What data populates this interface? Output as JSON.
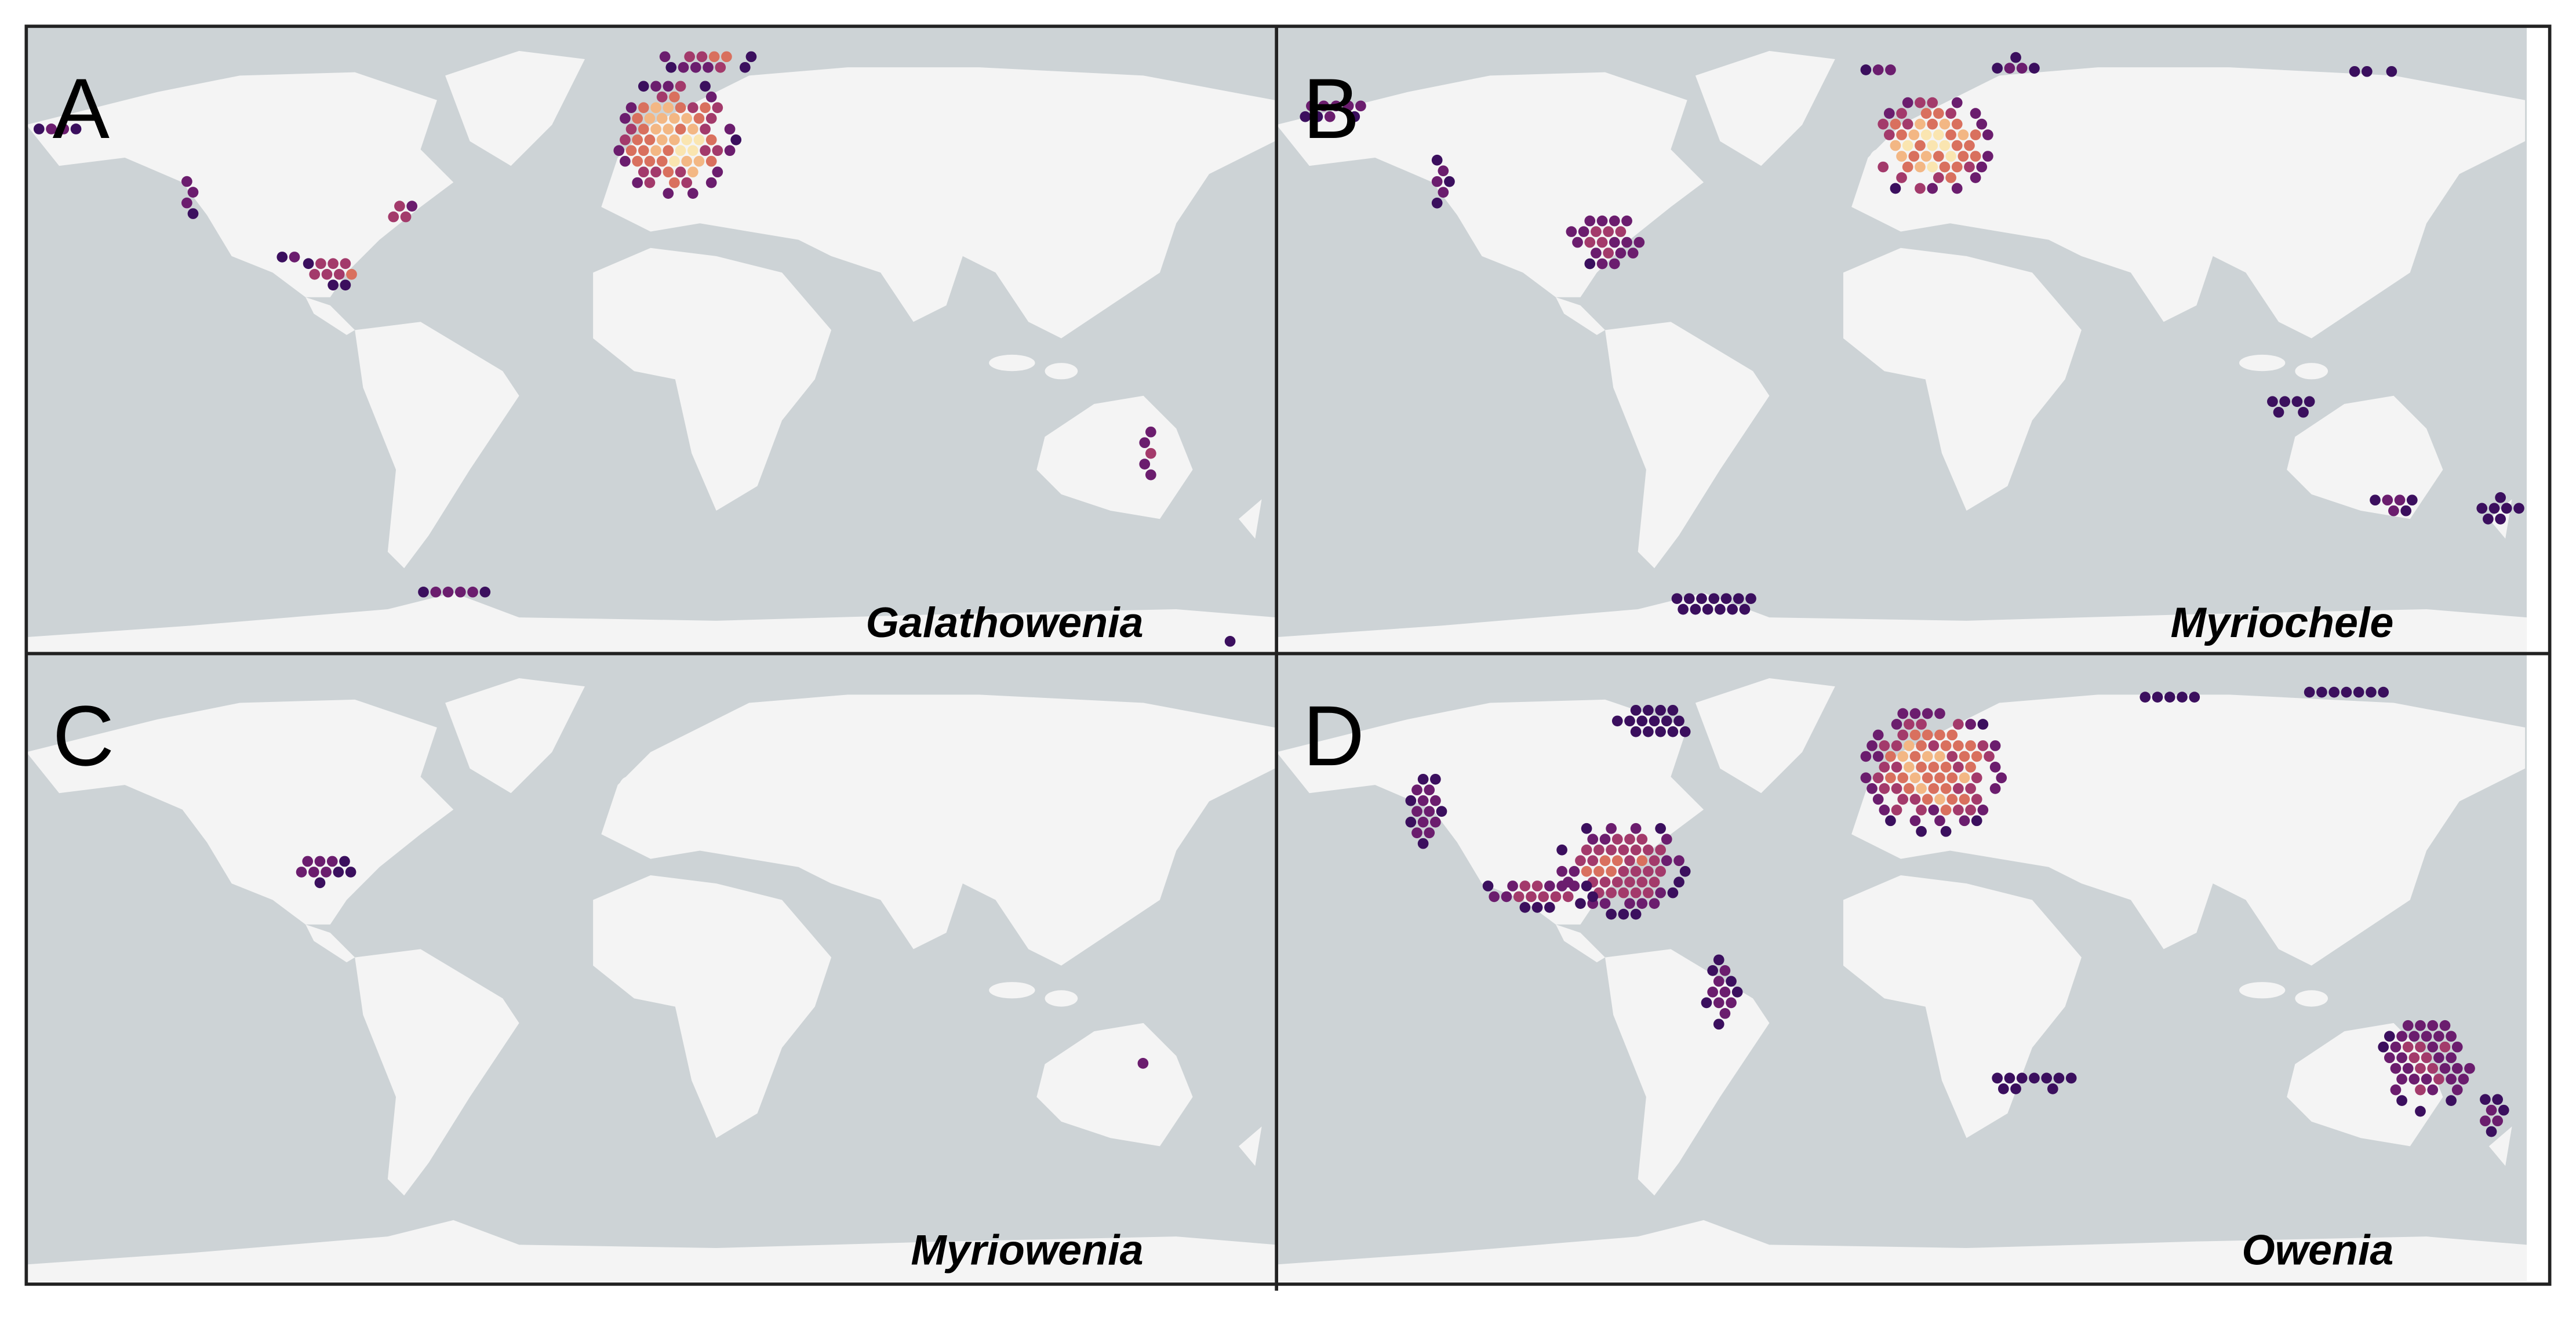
{
  "panels": [
    {
      "letter": "A",
      "genus": "Galathowenia"
    },
    {
      "letter": "B",
      "genus": "Myriochele"
    },
    {
      "letter": "C",
      "genus": "Myriowenia"
    },
    {
      "letter": "D",
      "genus": "Owenia"
    }
  ]
}
